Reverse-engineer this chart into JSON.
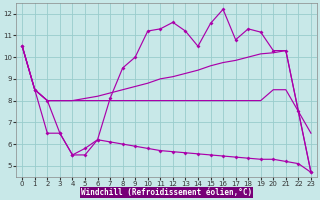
{
  "xlabel": "Windchill (Refroidissement éolien,°C)",
  "xlim": [
    -0.5,
    23.5
  ],
  "ylim": [
    4.5,
    12.5
  ],
  "xticks": [
    0,
    1,
    2,
    3,
    4,
    5,
    6,
    7,
    8,
    9,
    10,
    11,
    12,
    13,
    14,
    15,
    16,
    17,
    18,
    19,
    20,
    21,
    22,
    23
  ],
  "yticks": [
    5,
    6,
    7,
    8,
    9,
    10,
    11,
    12
  ],
  "bg_color": "#c8e8e8",
  "line_color": "#aa00aa",
  "grid_color": "#99cccc",
  "line_a_y": [
    10.5,
    8.5,
    8.0,
    8.0,
    8.0,
    8.0,
    8.0,
    8.0,
    8.0,
    8.0,
    8.0,
    8.0,
    8.0,
    8.0,
    8.0,
    8.0,
    8.0,
    8.0,
    8.0,
    8.0,
    8.5,
    8.5,
    7.5,
    4.7
  ],
  "line_b_y": [
    10.5,
    8.5,
    8.0,
    8.0,
    8.0,
    8.1,
    8.2,
    8.35,
    8.5,
    8.65,
    8.8,
    9.0,
    9.1,
    9.25,
    9.4,
    9.6,
    9.75,
    9.85,
    10.0,
    10.15,
    10.2,
    10.3,
    7.5,
    6.5
  ],
  "line_c_y": [
    10.5,
    8.5,
    6.5,
    6.5,
    5.5,
    5.5,
    6.2,
    8.1,
    9.5,
    10.0,
    11.2,
    11.3,
    11.6,
    11.2,
    10.5,
    11.55,
    12.2,
    10.8,
    11.3,
    11.15,
    10.3,
    10.3,
    7.5,
    4.7
  ],
  "line_d_y": [
    10.5,
    8.5,
    8.0,
    6.5,
    5.5,
    5.8,
    6.2,
    6.1,
    6.0,
    5.9,
    5.8,
    5.7,
    5.65,
    5.6,
    5.55,
    5.5,
    5.45,
    5.4,
    5.35,
    5.3,
    5.3,
    5.2,
    5.1,
    4.7
  ]
}
